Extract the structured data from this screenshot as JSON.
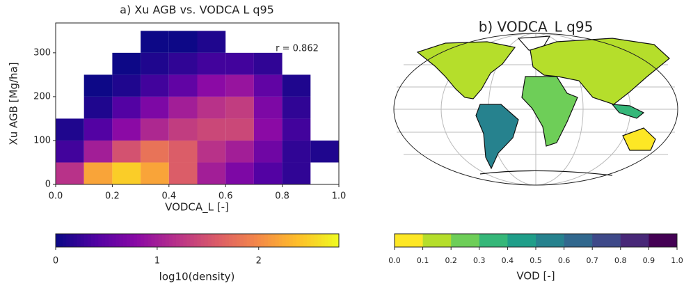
{
  "chart_data": [
    {
      "type": "density",
      "title": "a) Xu AGB vs. VODCA L q95",
      "xlabel": "VODCA_L [-]",
      "ylabel": "Xu AGB [Mg/ha]",
      "annotation": "r = 0.862",
      "xbins": [
        0,
        0.1,
        0.2,
        0.3,
        0.4,
        0.5,
        0.6,
        0.7,
        0.8,
        0.9,
        1.0
      ],
      "ybins": [
        0,
        50,
        100,
        150,
        200,
        250,
        300,
        350
      ],
      "values": [
        [
          1.2,
          2.2,
          2.5,
          2.2,
          1.6,
          1.0,
          0.7,
          0.4,
          0.2,
          null
        ],
        [
          0.3,
          1.0,
          1.5,
          1.8,
          1.6,
          1.2,
          1.0,
          0.6,
          0.2,
          0.1
        ],
        [
          0.1,
          0.4,
          0.8,
          1.1,
          1.3,
          1.4,
          1.4,
          0.8,
          0.3,
          null
        ],
        [
          null,
          0.1,
          0.4,
          0.7,
          1.0,
          1.2,
          1.3,
          0.7,
          0.2,
          null
        ],
        [
          null,
          0.0,
          0.1,
          0.3,
          0.5,
          0.8,
          0.9,
          0.5,
          0.1,
          null
        ],
        [
          null,
          null,
          0.0,
          0.1,
          0.2,
          0.3,
          0.3,
          0.2,
          null,
          null
        ],
        [
          null,
          null,
          null,
          0.0,
          0.0,
          0.1,
          null,
          null,
          null,
          null
        ]
      ],
      "xlim": [
        0,
        1.0
      ],
      "ylim": [
        0,
        368
      ],
      "xticks": [
        {
          "value": 0,
          "label": "0.0"
        },
        0.2,
        0.4,
        0.6,
        0.8,
        {
          "value": 1.0,
          "label": "1.0"
        }
      ],
      "yticks": [
        0,
        100,
        200,
        300
      ],
      "colorbar": {
        "label": "log10(density)",
        "lim": [
          0,
          2.79
        ],
        "ticks": [
          0,
          1,
          2
        ],
        "cmap": "plasma"
      }
    },
    {
      "type": "map",
      "title": "b) VODCA_L q95",
      "colorbar": {
        "label": "VOD [-]",
        "lim": [
          0,
          1.0
        ],
        "ticks": [
          {
            "value": 0,
            "label": "0.0"
          },
          0.1,
          0.2,
          0.3,
          0.4,
          0.5,
          0.6,
          0.7,
          0.8,
          0.9,
          {
            "value": 1.0,
            "label": "1.0"
          }
        ],
        "colors": [
          "#fde725",
          "#b5de2b",
          "#6ece58",
          "#35b779",
          "#1f9e89",
          "#26828e",
          "#31688e",
          "#3e4989",
          "#482878",
          "#440154"
        ]
      }
    }
  ]
}
